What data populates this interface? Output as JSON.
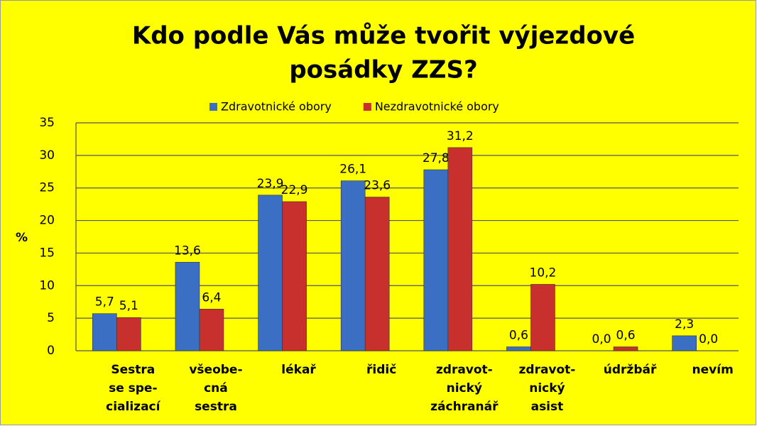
{
  "chart_data": {
    "type": "bar",
    "title": [
      "Kdo podle Vás může tvořit výjezdové",
      "posádky ZZS?"
    ],
    "ylabel": "%",
    "categories": [
      [
        "Sestra",
        "se spe-",
        "cializací"
      ],
      [
        "všeobe-",
        "cná",
        "sestra"
      ],
      [
        "lékař"
      ],
      [
        "řidič"
      ],
      [
        "zdravot-",
        "nický",
        "záchranář"
      ],
      [
        "zdravot-",
        "nický",
        "asist"
      ],
      [
        "údržbář"
      ],
      [
        "nevím"
      ]
    ],
    "series": [
      {
        "name": "Zdravotnické obory",
        "color": "#3a6fc4",
        "values": [
          5.7,
          13.6,
          23.9,
          26.1,
          27.8,
          0.6,
          0.0,
          2.3
        ],
        "value_labels": [
          "5,7",
          "13,6",
          "23,9",
          "26,1",
          "27,8",
          "0,6",
          "0,0",
          "2,3"
        ]
      },
      {
        "name": "Nezdravotnické obory",
        "color": "#c8302e",
        "values": [
          5.1,
          6.4,
          22.9,
          23.6,
          31.2,
          10.2,
          0.6,
          0.0
        ],
        "value_labels": [
          "5,1",
          "6,4",
          "22,9",
          "23,6",
          "31,2",
          "10,2",
          "0,6",
          "0,0"
        ]
      }
    ],
    "ylim": [
      0,
      35
    ],
    "yticks": [
      0,
      5,
      10,
      15,
      20,
      25,
      30,
      35
    ],
    "grid": true,
    "legend": "top"
  }
}
